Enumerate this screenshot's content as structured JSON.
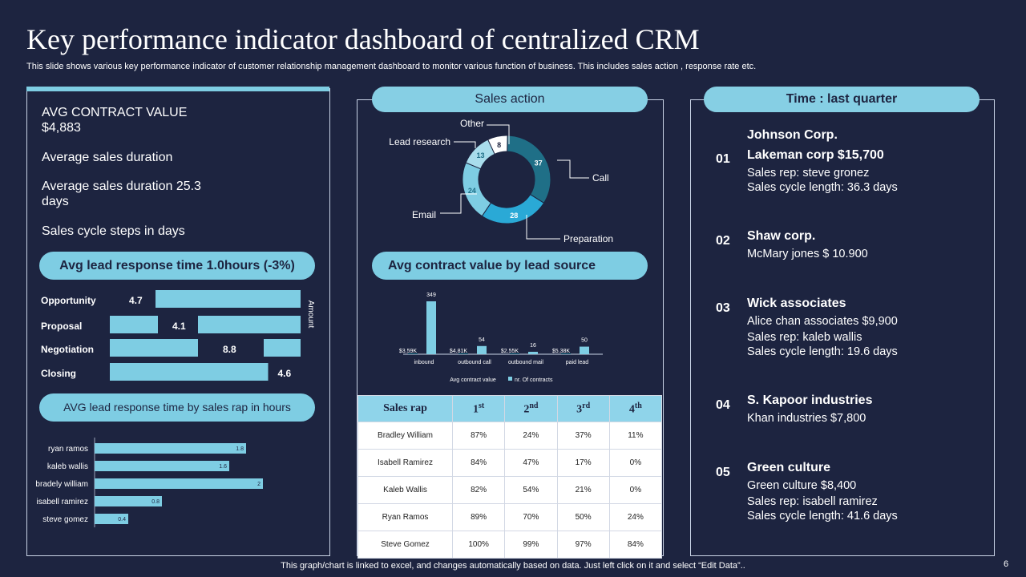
{
  "header": {
    "title": "Key performance indicator dashboard of centralized CRM",
    "subtitle": "This slide shows various key performance indicator of customer relationship management dashboard to monitor various function of business. This includes sales action , response rate etc."
  },
  "left_panel": {
    "stat1": "AVG CONTRACT VALUE",
    "stat1_value": "$4,883",
    "stat2": "Average sales duration",
    "stat3": "Average sales duration 25.3",
    "stat3_cont": "days",
    "stat4": "Sales cycle steps in days",
    "pill1": "Avg lead response time 1.0hours (-3%)",
    "pill2": "AVG lead response time by sales rap in hours"
  },
  "colors": {
    "background": "#1d2440",
    "accent": "#7ecde3",
    "bar_light": "#7ecde3",
    "donut_dark": "#1f6f87",
    "donut_mid": "#2aa9d6"
  },
  "sales_action_title": "Sales action",
  "contract_title": "Avg contract value by lead source",
  "time_title": "Time : last quarter",
  "chart_data": [
    {
      "type": "bar",
      "title": "Avg lead response time 1.0hours (-3%)",
      "orientation": "horizontal",
      "categories": [
        "Opportunity",
        "Proposal",
        "Negotiation",
        "Closing"
      ],
      "values": [
        4.7,
        4.1,
        8.8,
        4.6
      ],
      "axis_label": "Amount"
    },
    {
      "type": "bar",
      "title": "AVG lead response time by sales rap in hours",
      "orientation": "horizontal",
      "categories": [
        "ryan ramos",
        "kaleb wallis",
        "bradely william",
        "isabell ramirez",
        "steve gomez"
      ],
      "values": [
        1.8,
        1.6,
        2,
        0.8,
        0.4
      ],
      "xlim": [
        0,
        2.3
      ]
    },
    {
      "type": "pie",
      "title": "Sales action",
      "categories": [
        "Call",
        "Preparation",
        "Email",
        "Lead research",
        "Other"
      ],
      "values": [
        37,
        28,
        24,
        13,
        8
      ]
    },
    {
      "type": "bar",
      "title": "Avg contract value by lead source",
      "categories": [
        "inbound",
        "outbound call",
        "outbound mail",
        "paid lead"
      ],
      "series": [
        {
          "name": "Avg contract value",
          "values": [
            3.59,
            4.81,
            2.55,
            5.38
          ],
          "labels": [
            "$3.59K",
            "$4.81K",
            "$2.55K",
            "$5.38K"
          ]
        },
        {
          "name": "nr. Of contracts",
          "values": [
            349,
            54,
            16,
            50
          ]
        }
      ],
      "ylim": [
        0,
        349
      ]
    },
    {
      "type": "table",
      "title": "Sales rap",
      "columns": [
        "Sales rap",
        "1st",
        "2nd",
        "3rd",
        "4th"
      ],
      "rows": [
        [
          "Bradley William",
          "87%",
          "24%",
          "37%",
          "11%"
        ],
        [
          "Isabell Ramirez",
          "84%",
          "47%",
          "17%",
          "0%"
        ],
        [
          "Kaleb Wallis",
          "82%",
          "54%",
          "21%",
          "0%"
        ],
        [
          "Ryan Ramos",
          "89%",
          "70%",
          "50%",
          "24%"
        ],
        [
          "Steve Gomez",
          "100%",
          "99%",
          "97%",
          "84%"
        ]
      ]
    }
  ],
  "table_header": {
    "rep": "Sales rap",
    "c1": "1",
    "c1s": "st",
    "c2": "2",
    "c2s": "nd",
    "c3": "3",
    "c3s": "rd",
    "c4": "4",
    "c4s": "th"
  },
  "customers": [
    {
      "num": "01",
      "pre": "Johnson Corp.",
      "name": "Lakeman corp $15,700",
      "l1": "Sales rep: steve gronez",
      "l2": "Sales cycle length: 36.3 days"
    },
    {
      "num": "02",
      "name": "Shaw corp.",
      "l1": "McMary  jones $ 10.900"
    },
    {
      "num": "03",
      "name": "Wick associates",
      "l1": "Alice chan associates $9,900",
      "l2": "Sales rep: kaleb wallis",
      "l3": "Sales cycle length: 19.6 days"
    },
    {
      "num": "04",
      "name": "S. Kapoor industries",
      "l1": "Khan industries $7,800"
    },
    {
      "num": "05",
      "name": "Green culture",
      "l1": "Green culture $8,400",
      "l2": "Sales rep: isabell ramirez",
      "l3": "Sales cycle length: 41.6 days"
    }
  ],
  "footer": "This graph/chart is linked to excel,  and changes automatically based on data. Just left click on it and select “Edit Data”..",
  "page_number": "6"
}
